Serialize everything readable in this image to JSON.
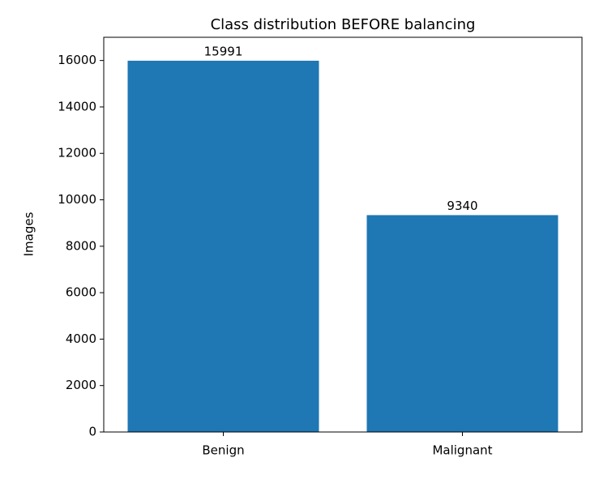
{
  "chart_data": {
    "type": "bar",
    "title": "Class distribution BEFORE balancing",
    "y_label": "Images",
    "categories": [
      "Benign",
      "Malignant"
    ],
    "values": [
      15991,
      9340
    ],
    "color": "#1f77b4",
    "ylim": [
      0,
      17000
    ],
    "yticks": [
      0,
      2000,
      4000,
      6000,
      8000,
      10000,
      12000,
      14000,
      16000
    ],
    "grid": false
  }
}
